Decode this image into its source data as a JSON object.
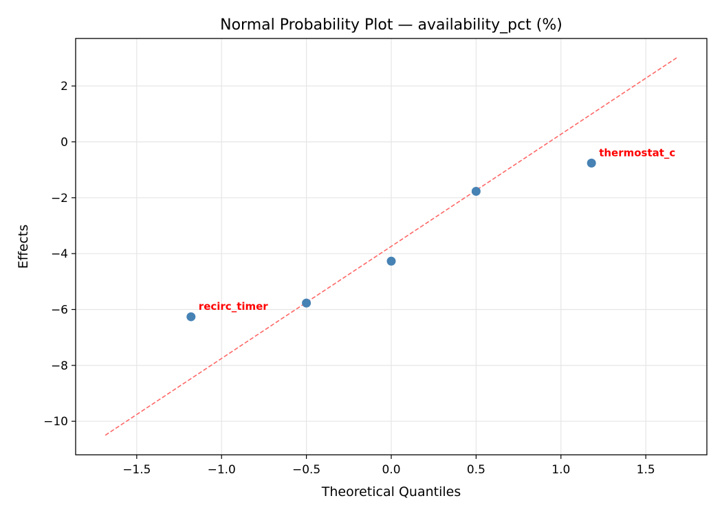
{
  "chart_data": {
    "type": "scatter",
    "title": "Normal Probability Plot — availability_pct (%)",
    "xlabel": "Theoretical Quantiles",
    "ylabel": "Effects",
    "xlim": [
      -1.86,
      1.86
    ],
    "ylim": [
      -11.2,
      3.7
    ],
    "xticks": [
      -1.5,
      -1.0,
      -0.5,
      0.0,
      0.5,
      1.0,
      1.5
    ],
    "xtick_labels": [
      "−1.5",
      "−1.0",
      "−0.5",
      "0.0",
      "0.5",
      "1.0",
      "1.5"
    ],
    "yticks": [
      2,
      0,
      -2,
      -4,
      -6,
      -8,
      -10
    ],
    "ytick_labels": [
      "2",
      "0",
      "−2",
      "−4",
      "−6",
      "−8",
      "−10"
    ],
    "grid": true,
    "points": [
      {
        "x": -1.18,
        "y": -6.26,
        "label": "recirc_timer"
      },
      {
        "x": -0.5,
        "y": -5.77,
        "label": ""
      },
      {
        "x": 0.0,
        "y": -4.27,
        "label": ""
      },
      {
        "x": 0.5,
        "y": -1.77,
        "label": ""
      },
      {
        "x": 1.18,
        "y": -0.76,
        "label": "thermostat_c"
      }
    ],
    "reference_line": {
      "x": [
        -1.685,
        1.685
      ],
      "y": [
        -10.5,
        3.02
      ],
      "style": "dashed"
    },
    "colors": {
      "points": "#4682b4",
      "line": "#ff6666",
      "labels": "#ff0000",
      "grid": "#e5e5e5"
    }
  }
}
